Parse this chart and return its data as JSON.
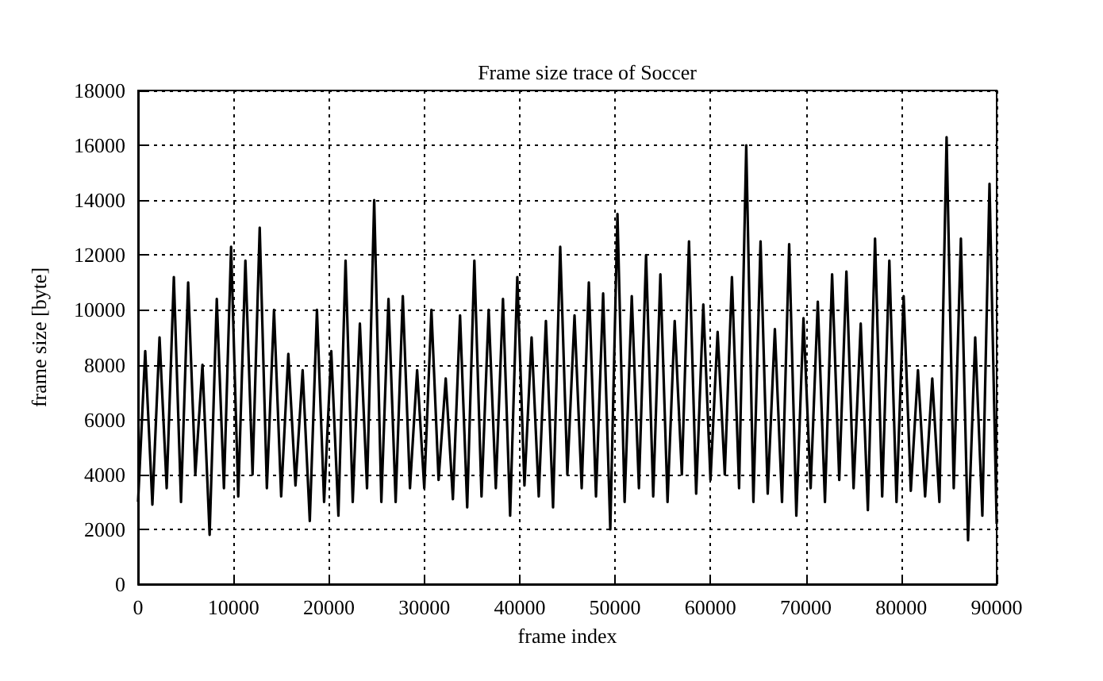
{
  "chart_data": {
    "type": "line",
    "title": "Frame size trace of Soccer",
    "xlabel": "frame index",
    "ylabel": "frame size [byte]",
    "x": [
      0,
      750,
      1500,
      2250,
      3000,
      3750,
      4500,
      5250,
      6000,
      6750,
      7500,
      8250,
      9000,
      9750,
      10500,
      11250,
      12000,
      12750,
      13500,
      14250,
      15000,
      15750,
      16500,
      17250,
      18000,
      18750,
      19500,
      20250,
      21000,
      21750,
      22500,
      23250,
      24000,
      24750,
      25500,
      26250,
      27000,
      27750,
      28500,
      29250,
      30000,
      30750,
      31500,
      32250,
      33000,
      33750,
      34500,
      35250,
      36000,
      36750,
      37500,
      38250,
      39000,
      39750,
      40500,
      41250,
      42000,
      42750,
      43500,
      44250,
      45000,
      45750,
      46500,
      47250,
      48000,
      48750,
      49500,
      50250,
      51000,
      51750,
      52500,
      53250,
      54000,
      54750,
      55500,
      56250,
      57000,
      57750,
      58500,
      59250,
      60000,
      60750,
      61500,
      62250,
      63000,
      63750,
      64500,
      65250,
      66000,
      66750,
      67500,
      68250,
      69000,
      69750,
      70500,
      71250,
      72000,
      72750,
      73500,
      74250,
      75000,
      75750,
      76500,
      77250,
      78000,
      78750,
      79500,
      80250,
      81000,
      81750,
      82500,
      83250,
      84000,
      84750,
      85500,
      86250,
      87000,
      87750,
      88500,
      89250,
      90000
    ],
    "series": [
      {
        "color": "#000000",
        "values": [
          3000,
          8500,
          2900,
          9000,
          3500,
          11200,
          3000,
          11000,
          4000,
          8000,
          1800,
          10400,
          3500,
          12300,
          3200,
          11800,
          4000,
          13000,
          3500,
          10000,
          3200,
          8400,
          3600,
          7800,
          2300,
          10000,
          3000,
          8500,
          2500,
          11800,
          3000,
          9500,
          3500,
          14000,
          3000,
          10400,
          3000,
          10500,
          3500,
          7800,
          3500,
          10000,
          3800,
          7500,
          3100,
          9800,
          2800,
          11800,
          3200,
          10000,
          3500,
          10400,
          2500,
          11200,
          3600,
          9000,
          3200,
          9600,
          2800,
          12300,
          4000,
          9800,
          3500,
          11000,
          3200,
          10600,
          2000,
          13500,
          3000,
          10500,
          3500,
          12000,
          3200,
          11300,
          3000,
          9600,
          4000,
          12500,
          3300,
          10200,
          3800,
          9200,
          4000,
          11200,
          3500,
          16000,
          3000,
          12500,
          3300,
          9300,
          3000,
          12400,
          2500,
          9700,
          3500,
          10300,
          3000,
          11300,
          3800,
          11400,
          3500,
          9500,
          2700,
          12600,
          3200,
          11800,
          3000,
          10500,
          3400,
          7800,
          3200,
          7500,
          3000,
          16300,
          3500,
          12600,
          1600,
          9000,
          2500,
          14600,
          2200
        ]
      }
    ],
    "xlim": [
      0,
      90000
    ],
    "xticks": [
      0,
      10000,
      20000,
      30000,
      40000,
      50000,
      60000,
      70000,
      80000,
      90000
    ],
    "ylim": [
      0,
      18000
    ],
    "yticks": [
      0,
      2000,
      4000,
      6000,
      8000,
      10000,
      12000,
      14000,
      16000,
      18000
    ],
    "grid": true,
    "line_style": "solid",
    "marker": "none"
  }
}
